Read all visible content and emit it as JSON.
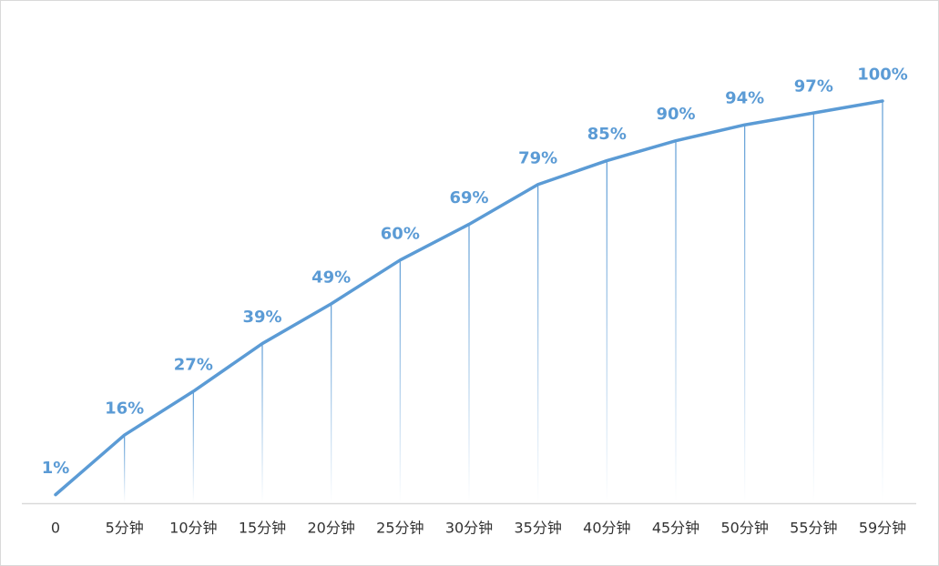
{
  "chart_data": {
    "type": "line",
    "title": "",
    "xlabel": "",
    "ylabel": "",
    "categories": [
      "0",
      "5分钟",
      "10分钟",
      "15分钟",
      "20分钟",
      "25分钟",
      "30分钟",
      "35分钟",
      "40分钟",
      "45分钟",
      "50分钟",
      "55分钟",
      "59分钟"
    ],
    "values": [
      1,
      16,
      27,
      39,
      49,
      60,
      69,
      79,
      85,
      90,
      94,
      97,
      100
    ],
    "data_labels": [
      "1%",
      "16%",
      "27%",
      "39%",
      "49%",
      "60%",
      "69%",
      "79%",
      "85%",
      "90%",
      "94%",
      "97%",
      "100%"
    ],
    "ylim": [
      0,
      100
    ],
    "grid": false,
    "legend": "none",
    "drop_lines": true,
    "colors": {
      "line": "#5b9bd5",
      "axis": "#d9d9d9",
      "label": "#5b9bd5",
      "tick": "#333333"
    }
  }
}
